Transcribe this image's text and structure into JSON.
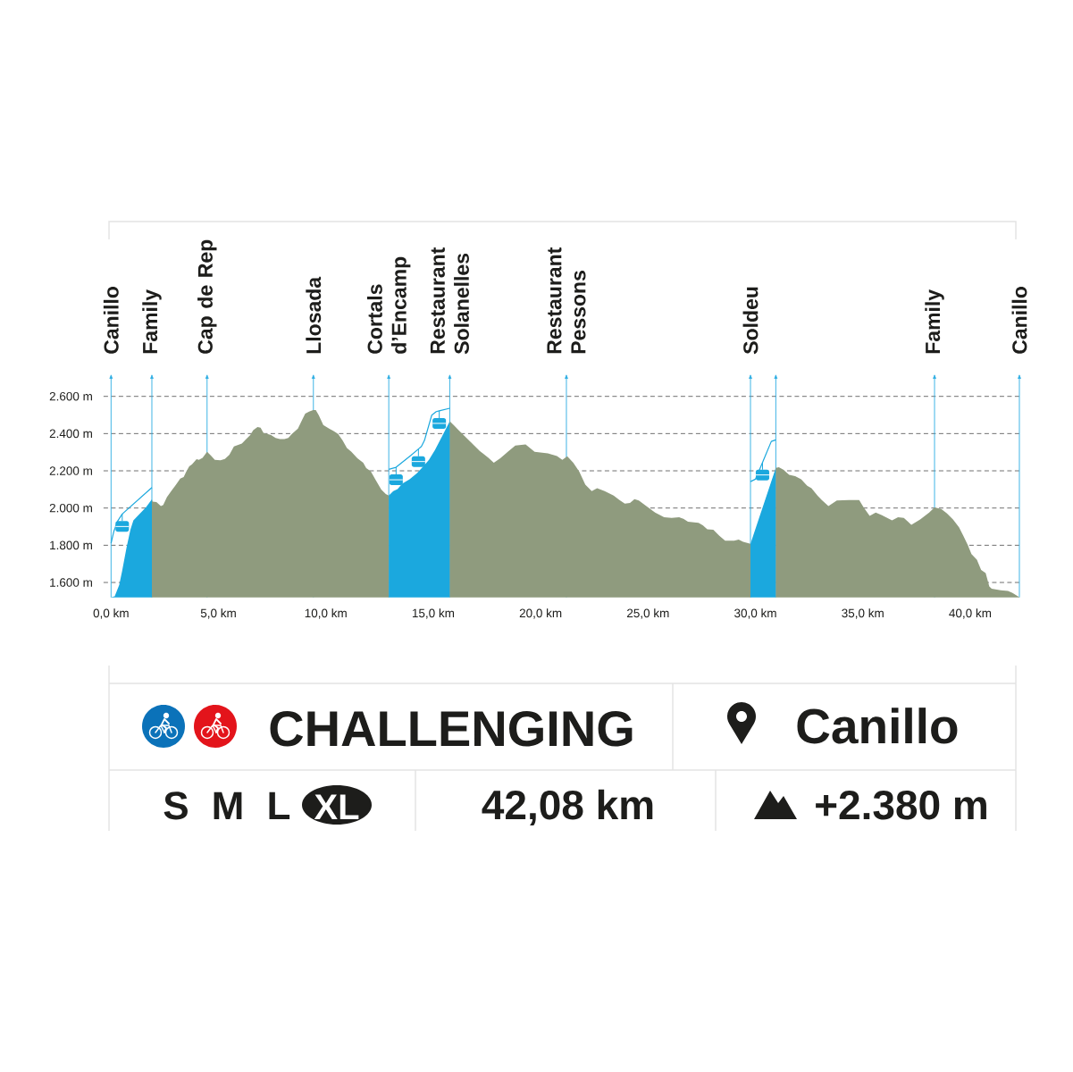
{
  "chart_data": [
    {
      "type": "area",
      "xlim": [
        -0.35,
        42.29
      ],
      "ylim": [
        1520,
        2600
      ],
      "xticks": [
        {
          "value": 0,
          "label": "0,0 km"
        },
        {
          "value": 5,
          "label": "5,0 km"
        },
        {
          "value": 10,
          "label": "10,0 km"
        },
        {
          "value": 15,
          "label": "15,0 km"
        },
        {
          "value": 20,
          "label": "20,0 km"
        },
        {
          "value": 25,
          "label": "25,0 km"
        },
        {
          "value": 30,
          "label": "30,0 km"
        },
        {
          "value": 35,
          "label": "35,0 km"
        },
        {
          "value": 40,
          "label": "40,0 km"
        }
      ],
      "yticks": [
        {
          "value": 1600,
          "label": "1.600 m"
        },
        {
          "value": 1800,
          "label": "1.800 m"
        },
        {
          "value": 2000,
          "label": "2.000 m"
        },
        {
          "value": 2200,
          "label": "2.200 m"
        },
        {
          "value": 2400,
          "label": "2.400 m"
        },
        {
          "value": 2600,
          "label": "2.600 m"
        }
      ],
      "grid": "y",
      "series": [
        {
          "type": "area",
          "color": "#1ba8de",
          "x": [
            0,
            0.17,
            0.38,
            0.51,
            0.72,
            0.9,
            1.04,
            1.35,
            1.62,
            1.9
          ],
          "values": [
            1521,
            1526,
            1587,
            1659,
            1787,
            1883,
            1934,
            1971,
            2003,
            2046
          ]
        },
        {
          "type": "area",
          "color": "#8f9b7e",
          "x": [
            1.9,
            1.93,
            2.11,
            2.32,
            2.43,
            2.6,
            2.8,
            3.01,
            3.22,
            3.38,
            3.5,
            3.64,
            3.77,
            3.98,
            4.09,
            4.26,
            4.47,
            4.64,
            4.83,
            5.09,
            5.3,
            5.51,
            5.72,
            5.92,
            6.09,
            6.27,
            6.48,
            6.62,
            6.82,
            6.96,
            7.1,
            7.28,
            7.45,
            7.66,
            7.86,
            8.07,
            8.25,
            8.42,
            8.7,
            8.9,
            9.04,
            9.22,
            9.41,
            9.53,
            9.67,
            9.88,
            10.15,
            10.36,
            10.57,
            10.78,
            10.98,
            11.19,
            11.47,
            11.74,
            11.88,
            12.09,
            12.3,
            12.58,
            12.79,
            12.93
          ],
          "values": [
            2046,
            2035,
            2032,
            2011,
            2016,
            2059,
            2091,
            2123,
            2158,
            2166,
            2195,
            2224,
            2235,
            2262,
            2259,
            2270,
            2302,
            2283,
            2259,
            2256,
            2264,
            2286,
            2331,
            2339,
            2347,
            2368,
            2392,
            2419,
            2435,
            2432,
            2403,
            2398,
            2392,
            2376,
            2371,
            2371,
            2376,
            2398,
            2427,
            2475,
            2507,
            2518,
            2526,
            2526,
            2499,
            2446,
            2427,
            2414,
            2398,
            2363,
            2323,
            2302,
            2267,
            2243,
            2214,
            2198,
            2155,
            2099,
            2075,
            2067
          ]
        },
        {
          "type": "area",
          "color": "#1ba8de",
          "x": [
            12.93,
            13.14,
            13.34,
            13.55,
            13.9,
            14.24,
            14.52,
            14.8,
            15.08,
            15.42,
            15.77
          ],
          "values": [
            2067,
            2091,
            2102,
            2131,
            2155,
            2187,
            2222,
            2259,
            2312,
            2387,
            2467
          ]
        },
        {
          "type": "area",
          "color": "#8f9b7e",
          "x": [
            15.77,
            16.18,
            16.74,
            17.16,
            17.57,
            17.82,
            18.12,
            18.47,
            18.82,
            19.3,
            19.72,
            20.34,
            20.76,
            21.01,
            21.24,
            21.52,
            21.8,
            22.08,
            22.38,
            22.63,
            22.98,
            23.4,
            23.67,
            23.92,
            24.16,
            24.37,
            24.57,
            24.92,
            25.33,
            25.75,
            26.1,
            26.45,
            26.65,
            26.86,
            27.35,
            27.55,
            27.76,
            28.04,
            28.32,
            28.59,
            29.01,
            29.22,
            29.43,
            29.77
          ],
          "values": [
            2467,
            2419,
            2355,
            2307,
            2270,
            2243,
            2267,
            2302,
            2336,
            2342,
            2302,
            2294,
            2279,
            2259,
            2278,
            2243,
            2195,
            2126,
            2091,
            2107,
            2091,
            2067,
            2043,
            2024,
            2027,
            2048,
            2040,
            2011,
            1976,
            1950,
            1947,
            1950,
            1942,
            1926,
            1921,
            1907,
            1886,
            1883,
            1851,
            1824,
            1824,
            1830,
            1819,
            1808
          ]
        },
        {
          "type": "area",
          "color": "#1ba8de",
          "x": [
            29.77,
            30.95
          ],
          "values": [
            1808,
            2216
          ]
        },
        {
          "type": "area",
          "color": "#8f9b7e",
          "x": [
            30.95,
            31.09,
            31.3,
            31.57,
            31.85,
            32.13,
            32.41,
            32.61,
            32.89,
            33.09,
            33.4,
            33.79,
            34.35,
            34.83,
            35.04,
            35.32,
            35.6,
            35.87,
            36.36,
            36.64,
            36.91,
            37.26,
            37.67,
            38.09,
            38.34,
            38.65,
            38.92,
            39.2,
            39.48,
            39.68,
            39.89,
            40.06,
            40.31,
            40.51,
            40.72,
            40.89,
            41.0,
            41.42,
            41.76,
            41.97,
            42.29
          ],
          "values": [
            2216,
            2219,
            2206,
            2179,
            2171,
            2155,
            2120,
            2107,
            2067,
            2043,
            2011,
            2040,
            2043,
            2043,
            2003,
            1958,
            1976,
            1963,
            1934,
            1950,
            1947,
            1910,
            1939,
            1976,
            2003,
            1995,
            1971,
            1939,
            1896,
            1851,
            1800,
            1752,
            1723,
            1667,
            1651,
            1579,
            1566,
            1558,
            1555,
            1544,
            1521
          ]
        },
        {
          "type": "line",
          "color": "#1ba8de",
          "x": [
            0,
            0.13,
            0.31,
            0.52,
            1.9
          ],
          "values": [
            1811,
            1875,
            1931,
            1968,
            2110
          ]
        },
        {
          "type": "line",
          "color": "#1ba8de",
          "x": [
            12.93,
            13.27,
            13.96,
            14.31,
            14.45,
            14.59,
            14.93,
            15.14,
            15.28,
            15.77
          ],
          "values": [
            2208,
            2219,
            2283,
            2317,
            2331,
            2363,
            2499,
            2518,
            2522,
            2536
          ]
        },
        {
          "type": "line",
          "color": "#1ba8de",
          "x": [
            29.77,
            30.0,
            30.33,
            30.74,
            30.95
          ],
          "values": [
            2142,
            2155,
            2245,
            2358,
            2366
          ]
        }
      ],
      "ref_lines": [
        {
          "axis": "x",
          "value": 0,
          "label": "Canillo",
          "color": "#29abe2"
        },
        {
          "axis": "x",
          "value": 1.9,
          "label": "Family",
          "color": "#29abe2"
        },
        {
          "axis": "x",
          "value": 4.47,
          "label": "Cap de Rep",
          "color": "#29abe2"
        },
        {
          "axis": "x",
          "value": 9.42,
          "label": "Llosada",
          "color": "#29abe2"
        },
        {
          "axis": "x",
          "value": 12.93,
          "label": "Cortals d’Encamp",
          "color": "#29abe2"
        },
        {
          "axis": "x",
          "value": 15.77,
          "label": "Restaurant Solanelles",
          "color": "#29abe2"
        },
        {
          "axis": "x",
          "value": 21.2,
          "label": "Restaurant Pessons",
          "color": "#29abe2"
        },
        {
          "axis": "x",
          "value": 29.77,
          "label": "Soldeu",
          "color": "#29abe2"
        },
        {
          "axis": "x",
          "value": 30.95,
          "color": "#29abe2"
        },
        {
          "axis": "x",
          "value": 38.34,
          "label": "Family",
          "color": "#29abe2"
        },
        {
          "axis": "x",
          "value": 42.29,
          "label": "Canillo",
          "color": "#29abe2"
        }
      ]
    },
    {
      "type": "other",
      "annotations": [
        "CHALLENGING",
        "Canillo",
        "S",
        "M",
        "L",
        "XL",
        "42,08 km",
        "+2.380 m"
      ]
    }
  ]
}
